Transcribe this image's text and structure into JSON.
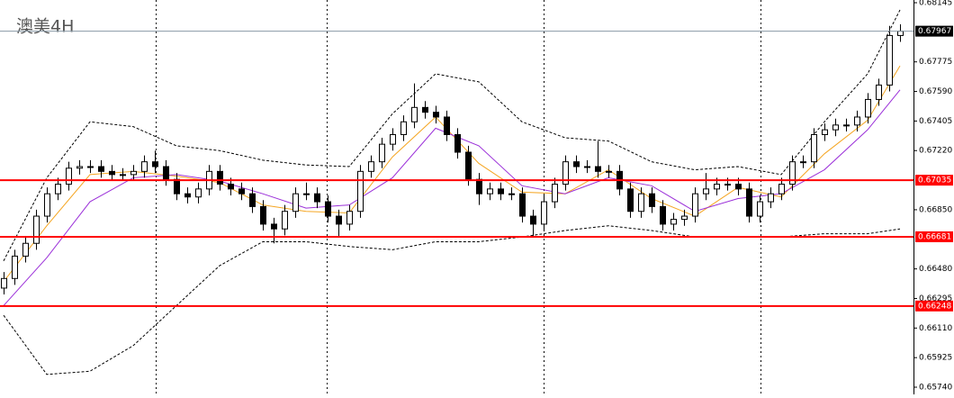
{
  "chart_data": {
    "type": "candlestick",
    "title": "澳美4H",
    "ylim": [
      0.65695,
      0.68162
    ],
    "yticks": [
      0.68145,
      0.67775,
      {
        "value": 0.6759,
        "label": "0.67590"
      },
      0.67405,
      {
        "value": 0.6722,
        "label": "0.67220"
      },
      {
        "value": 0.6685,
        "label": "0.66850"
      },
      {
        "value": 0.6648,
        "label": "0.66480"
      },
      0.66295,
      {
        "value": 0.6611,
        "label": "0.66110"
      },
      0.65925,
      {
        "value": 0.6574,
        "label": "0.65740"
      }
    ],
    "open": [
      0.6636,
      0.6642,
      0.6656,
      0.6664,
      0.6681,
      0.6695,
      0.6701,
      0.6711,
      0.6712,
      0.6712,
      0.6709,
      0.6707,
      0.6707,
      0.6709,
      0.6715,
      0.6712,
      0.6704,
      0.6695,
      0.6693,
      0.6698,
      0.6709,
      0.6701,
      0.6698,
      0.6695,
      0.6687,
      0.6676,
      0.6673,
      0.6684,
      0.6695,
      0.6695,
      0.669,
      0.6681,
      0.6676,
      0.6684,
      0.6709,
      0.6715,
      0.6726,
      0.6732,
      0.674,
      0.6749,
      0.6746,
      0.6743,
      0.6732,
      0.6721,
      0.6704,
      0.6695,
      0.6698,
      0.6695,
      0.6695,
      0.6681,
      0.6676,
      0.669,
      0.6701,
      0.6715,
      0.6712,
      0.6712,
      0.6709,
      0.6709,
      0.6698,
      0.6684,
      0.6695,
      0.6687,
      0.6676,
      0.6679,
      0.6681,
      0.6695,
      0.6698,
      0.6701,
      0.6701,
      0.6698,
      0.6681,
      0.669,
      0.6695,
      0.6701,
      0.6715,
      0.6715,
      0.6732,
      0.6735,
      0.6738,
      0.6738,
      0.6743,
      0.6754,
      0.6763,
      0.6794
    ],
    "high": [
      0.6646,
      0.666,
      0.6668,
      0.6685,
      0.6699,
      0.6705,
      0.6715,
      0.6716,
      0.6716,
      0.6716,
      0.6713,
      0.6711,
      0.6713,
      0.6719,
      0.6722,
      0.6716,
      0.6708,
      0.6699,
      0.6702,
      0.6713,
      0.6713,
      0.6705,
      0.6702,
      0.6699,
      0.6691,
      0.668,
      0.6688,
      0.6699,
      0.6702,
      0.6699,
      0.6694,
      0.6685,
      0.6688,
      0.6713,
      0.6719,
      0.673,
      0.6736,
      0.6744,
      0.6764,
      0.6753,
      0.675,
      0.6747,
      0.6736,
      0.6725,
      0.6708,
      0.6702,
      0.6702,
      0.6699,
      0.6699,
      0.6685,
      0.6694,
      0.6705,
      0.6719,
      0.6719,
      0.6716,
      0.6728,
      0.6713,
      0.6713,
      0.6702,
      0.6699,
      0.6699,
      0.6691,
      0.6683,
      0.6685,
      0.6699,
      0.6708,
      0.6705,
      0.6705,
      0.6705,
      0.6702,
      0.6694,
      0.6699,
      0.6705,
      0.6719,
      0.6719,
      0.6736,
      0.6739,
      0.6742,
      0.6742,
      0.6747,
      0.6758,
      0.6767,
      0.68,
      0.6801
    ],
    "low": [
      0.6632,
      0.6638,
      0.6652,
      0.666,
      0.6677,
      0.6691,
      0.6697,
      0.6707,
      0.6708,
      0.6705,
      0.6703,
      0.6703,
      0.6703,
      0.6705,
      0.6708,
      0.67,
      0.6691,
      0.6689,
      0.6689,
      0.6694,
      0.6697,
      0.6694,
      0.6691,
      0.6683,
      0.6672,
      0.6664,
      0.6669,
      0.668,
      0.6691,
      0.6686,
      0.6677,
      0.6668,
      0.6672,
      0.668,
      0.6705,
      0.6711,
      0.6722,
      0.6728,
      0.6736,
      0.6742,
      0.6739,
      0.6728,
      0.6717,
      0.67,
      0.6688,
      0.6691,
      0.6691,
      0.6691,
      0.6677,
      0.6668,
      0.6672,
      0.6686,
      0.6697,
      0.6708,
      0.6708,
      0.6705,
      0.6705,
      0.6694,
      0.668,
      0.668,
      0.6683,
      0.6672,
      0.6672,
      0.6675,
      0.6677,
      0.6691,
      0.6694,
      0.6697,
      0.6694,
      0.6677,
      0.6677,
      0.6686,
      0.6691,
      0.6697,
      0.6711,
      0.6711,
      0.6728,
      0.6731,
      0.6734,
      0.6734,
      0.6739,
      0.675,
      0.6759,
      0.679
    ],
    "close": [
      0.6642,
      0.6656,
      0.6664,
      0.6681,
      0.6695,
      0.6701,
      0.6711,
      0.6712,
      0.6712,
      0.6709,
      0.6707,
      0.6707,
      0.6709,
      0.6715,
      0.6712,
      0.6704,
      0.6695,
      0.6693,
      0.6698,
      0.6709,
      0.6701,
      0.6698,
      0.6695,
      0.6687,
      0.6676,
      0.6673,
      0.6684,
      0.6695,
      0.6695,
      0.669,
      0.6681,
      0.6676,
      0.6684,
      0.6709,
      0.6715,
      0.6726,
      0.6732,
      0.674,
      0.6749,
      0.6746,
      0.6743,
      0.6732,
      0.6721,
      0.6704,
      0.6695,
      0.6698,
      0.6695,
      0.6695,
      0.6681,
      0.6676,
      0.669,
      0.6701,
      0.6715,
      0.6712,
      0.6712,
      0.6709,
      0.6709,
      0.6698,
      0.6684,
      0.6695,
      0.6687,
      0.6676,
      0.6679,
      0.6681,
      0.6695,
      0.6698,
      0.6701,
      0.6701,
      0.6698,
      0.6681,
      0.669,
      0.6695,
      0.6701,
      0.6715,
      0.6715,
      0.6732,
      0.6735,
      0.6738,
      0.6738,
      0.6743,
      0.6754,
      0.6763,
      0.6794,
      0.67967
    ],
    "indicators": [
      {
        "color": "#f5a623",
        "dashed": false,
        "x": [
          0,
          4,
          8,
          12,
          16,
          20,
          24,
          28,
          32,
          36,
          40,
          44,
          48,
          52,
          56,
          60,
          64,
          68,
          72,
          76,
          80,
          83
        ],
        "values": [
          0.664,
          0.6675,
          0.6707,
          0.6709,
          0.6706,
          0.6702,
          0.6688,
          0.6684,
          0.6683,
          0.6718,
          0.6743,
          0.6714,
          0.6696,
          0.6695,
          0.671,
          0.6692,
          0.6681,
          0.6699,
          0.6693,
          0.672,
          0.6741,
          0.6775
        ]
      },
      {
        "color": "#9b30d9",
        "dashed": false,
        "x": [
          0,
          4,
          8,
          12,
          16,
          20,
          24,
          28,
          32,
          36,
          40,
          44,
          48,
          52,
          56,
          60,
          64,
          68,
          72,
          76,
          80,
          83
        ],
        "values": [
          0.6625,
          0.6655,
          0.669,
          0.6705,
          0.6707,
          0.6703,
          0.6695,
          0.6686,
          0.6688,
          0.6705,
          0.6736,
          0.6725,
          0.67,
          0.6695,
          0.6705,
          0.67,
          0.6684,
          0.6692,
          0.6695,
          0.671,
          0.6735,
          0.676
        ]
      },
      {
        "color": "#000000",
        "dashed": true,
        "x": [
          0,
          4,
          8,
          12,
          16,
          20,
          24,
          28,
          32,
          36,
          40,
          44,
          48,
          52,
          56,
          60,
          64,
          68,
          72,
          76,
          80,
          83
        ],
        "values": [
          0.6653,
          0.6705,
          0.674,
          0.6737,
          0.6725,
          0.6722,
          0.6716,
          0.6713,
          0.6712,
          0.6745,
          0.677,
          0.6765,
          0.674,
          0.673,
          0.6728,
          0.6715,
          0.671,
          0.6712,
          0.6707,
          0.674,
          0.677,
          0.681
        ]
      },
      {
        "color": "#000000",
        "dashed": true,
        "x": [
          0,
          4,
          8,
          12,
          16,
          20,
          24,
          28,
          32,
          36,
          40,
          44,
          48,
          52,
          56,
          60,
          64,
          68,
          72,
          76,
          80,
          83
        ],
        "values": [
          0.6619,
          0.6582,
          0.6584,
          0.66,
          0.6625,
          0.665,
          0.6665,
          0.6665,
          0.6662,
          0.666,
          0.6665,
          0.6665,
          0.6668,
          0.6672,
          0.6675,
          0.6672,
          0.6668,
          0.6668,
          0.6668,
          0.667,
          0.667,
          0.6673
        ]
      }
    ],
    "levels": [
      {
        "value": 0.67035,
        "color": "#ff0000"
      },
      {
        "value": 0.66681,
        "color": "#ff0000"
      },
      {
        "value": 0.66248,
        "color": "#ff0000"
      }
    ],
    "last_price": {
      "value": 0.67967,
      "color": "#000000"
    }
  }
}
